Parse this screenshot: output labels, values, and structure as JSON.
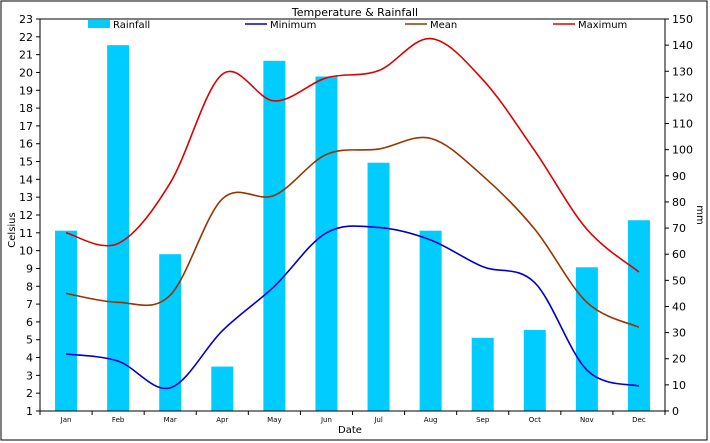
{
  "chart_data": {
    "type": "bar",
    "title": "Temperature & Rainfall",
    "xlabel": "Date",
    "ylabel": "Celsius",
    "y2label": "mm",
    "categories": [
      "Jan",
      "Feb",
      "Mar",
      "Apr",
      "May",
      "Jun",
      "Jul",
      "Aug",
      "Sep",
      "Oct",
      "Nov",
      "Dec"
    ],
    "ylim": [
      1,
      23
    ],
    "y2lim": [
      0,
      150
    ],
    "grid": false,
    "legend_position": "top",
    "series": [
      {
        "name": "Rainfall",
        "type": "bar",
        "axis": "right",
        "color": "#00ccff",
        "values": [
          69,
          140,
          60,
          17,
          134,
          128,
          95,
          69,
          28,
          31,
          55,
          73
        ]
      },
      {
        "name": "Minimum",
        "type": "line",
        "axis": "left",
        "color": "#0000cc",
        "values": [
          4.2,
          3.8,
          2.3,
          5.5,
          8.0,
          11.0,
          11.3,
          10.6,
          9.1,
          8.2,
          3.3,
          2.4
        ]
      },
      {
        "name": "Mean",
        "type": "line",
        "axis": "left",
        "color": "#993300",
        "values": [
          7.6,
          7.1,
          7.5,
          12.9,
          13.1,
          15.4,
          15.7,
          16.3,
          14.2,
          11.2,
          7.1,
          5.7
        ]
      },
      {
        "name": "Maximum",
        "type": "line",
        "axis": "left",
        "color": "#dd0000",
        "values": [
          11.0,
          10.4,
          13.8,
          19.9,
          18.4,
          19.7,
          20.1,
          21.9,
          19.6,
          15.6,
          11.2,
          8.8
        ]
      }
    ]
  }
}
